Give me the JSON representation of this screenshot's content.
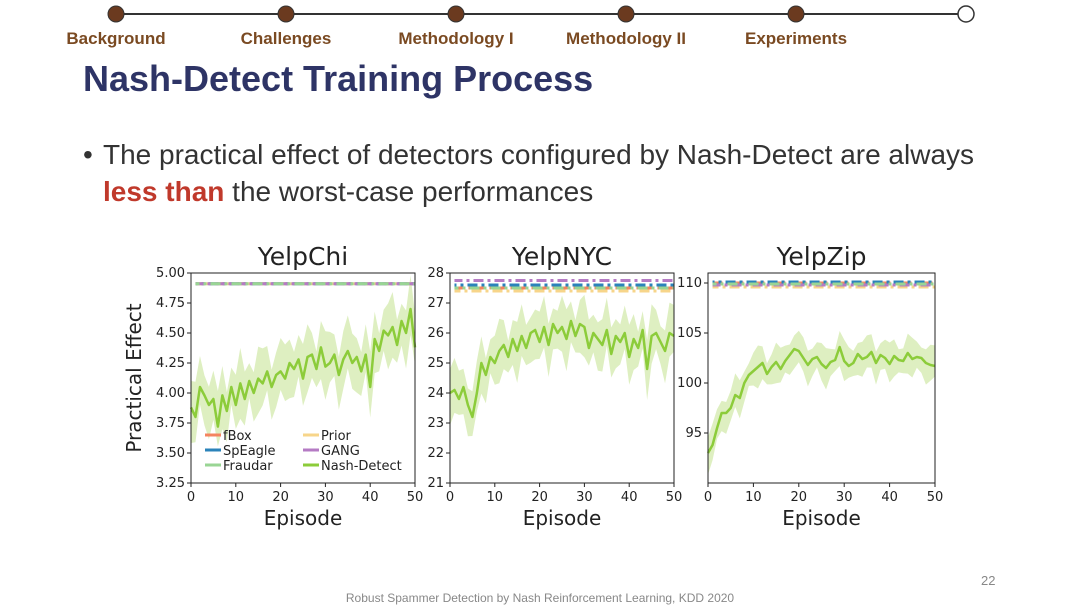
{
  "progress": {
    "steps": [
      "Background",
      "Challenges",
      "Methodology I",
      "Methodology II",
      "Experiments"
    ]
  },
  "slide": {
    "title": "Nash-Detect Training Process",
    "bullet_pre": "The practical effect of detectors configured by Nash-Detect are always ",
    "bullet_highlight": "less than",
    "bullet_post": " the worst-case performances",
    "page_number": "22",
    "footer": "Robust Spammer Detection by Nash Reinforcement Learning, KDD 2020"
  },
  "colors": {
    "progress_dot": "#6b3a1f",
    "highlight": "#c0392b",
    "fbox": "#f4845f",
    "prior": "#f7d58a",
    "speagle": "#2b83ba",
    "gang": "#b57bc4",
    "fraudar": "#99d594",
    "nash": "#8ccc3a",
    "nash_band": "#d6ebb1"
  },
  "chart_data": [
    {
      "type": "line",
      "title": "YelpChi",
      "xlabel": "Episode",
      "ylabel": "Practical Effect",
      "xlim": [
        0,
        50
      ],
      "ylim": [
        3.25,
        5.0
      ],
      "xticks": [
        0,
        10,
        20,
        30,
        40,
        50
      ],
      "yticks": [
        "5.00",
        "4.75",
        "4.50",
        "4.25",
        "4.00",
        "3.75",
        "3.50",
        "3.25"
      ],
      "ytick_values": [
        5.0,
        4.75,
        4.5,
        4.25,
        4.0,
        3.75,
        3.5,
        3.25
      ],
      "baselines": {
        "fBox": 4.91,
        "Prior": 4.91,
        "SpEagle": 4.91,
        "GANG": 4.91,
        "Fraudar": 4.91
      },
      "nash_detect": [
        3.88,
        3.8,
        4.05,
        3.98,
        3.9,
        3.95,
        3.72,
        3.98,
        3.85,
        4.05,
        3.9,
        4.08,
        3.95,
        4.1,
        4.0,
        4.12,
        4.08,
        4.18,
        4.05,
        4.15,
        4.18,
        4.12,
        4.25,
        4.2,
        4.28,
        4.12,
        4.3,
        4.32,
        4.2,
        4.38,
        4.22,
        4.25,
        4.32,
        4.15,
        4.28,
        4.35,
        4.25,
        4.3,
        4.18,
        4.32,
        4.05,
        4.45,
        4.35,
        4.52,
        4.48,
        4.55,
        4.4,
        4.6,
        4.5,
        4.7,
        4.38
      ],
      "band_halfwidth": 0.22,
      "legend": [
        "fBox",
        "Prior",
        "SpEagle",
        "GANG",
        "Fraudar",
        "Nash-Detect"
      ]
    },
    {
      "type": "line",
      "title": "YelpNYC",
      "xlabel": "Episode",
      "ylabel": "",
      "xlim": [
        0,
        50
      ],
      "ylim": [
        21,
        28
      ],
      "xticks": [
        0,
        10,
        20,
        30,
        40,
        50
      ],
      "yticks": [
        "28",
        "27",
        "26",
        "25",
        "24",
        "23",
        "22",
        "21"
      ],
      "ytick_values": [
        28,
        27,
        26,
        25,
        24,
        23,
        22,
        21
      ],
      "baselines": {
        "fBox": 27.5,
        "Prior": 27.4,
        "SpEagle": 27.6,
        "GANG": 27.75,
        "Fraudar": 27.5
      },
      "nash_detect": [
        24.0,
        24.1,
        23.8,
        24.2,
        23.6,
        23.2,
        24.0,
        25.0,
        24.6,
        25.2,
        25.0,
        25.4,
        25.6,
        25.2,
        25.8,
        25.4,
        25.9,
        25.5,
        26.0,
        26.1,
        25.7,
        26.2,
        25.6,
        26.3,
        26.0,
        26.2,
        25.8,
        26.4,
        25.9,
        26.3,
        26.2,
        25.5,
        26.0,
        25.8,
        25.6,
        26.1,
        25.3,
        25.9,
        25.7,
        26.0,
        25.2,
        25.8,
        25.5,
        26.1,
        24.8,
        25.9,
        26.0,
        25.7,
        25.4,
        26.0,
        25.9
      ],
      "band_halfwidth": 0.8,
      "legend": []
    },
    {
      "type": "line",
      "title": "YelpZip",
      "xlabel": "Episode",
      "ylabel": "",
      "xlim": [
        0,
        50
      ],
      "ylim": [
        90,
        111
      ],
      "xticks": [
        0,
        10,
        20,
        30,
        40,
        50
      ],
      "yticks": [
        "110",
        "105",
        "100",
        "95"
      ],
      "ytick_values": [
        110,
        105,
        100,
        95
      ],
      "baselines": {
        "fBox": 110.0,
        "Prior": 109.6,
        "SpEagle": 110.1,
        "GANG": 109.8,
        "Fraudar": 109.9
      },
      "nash_detect": [
        93.0,
        93.8,
        95.5,
        97.0,
        97.0,
        97.5,
        98.8,
        98.5,
        100.0,
        100.8,
        101.2,
        101.6,
        102.0,
        100.9,
        101.6,
        102.1,
        101.4,
        102.2,
        102.8,
        103.4,
        103.2,
        102.5,
        101.8,
        102.4,
        102.6,
        101.9,
        101.5,
        102.1,
        102.3,
        103.6,
        102.2,
        101.7,
        102.0,
        102.9,
        102.4,
        102.6,
        103.1,
        102.0,
        102.8,
        102.5,
        101.9,
        102.7,
        102.3,
        102.2,
        103.0,
        102.4,
        102.6,
        102.5,
        102.0,
        101.8,
        101.7
      ],
      "band_halfwidth": 1.6,
      "legend": []
    }
  ]
}
